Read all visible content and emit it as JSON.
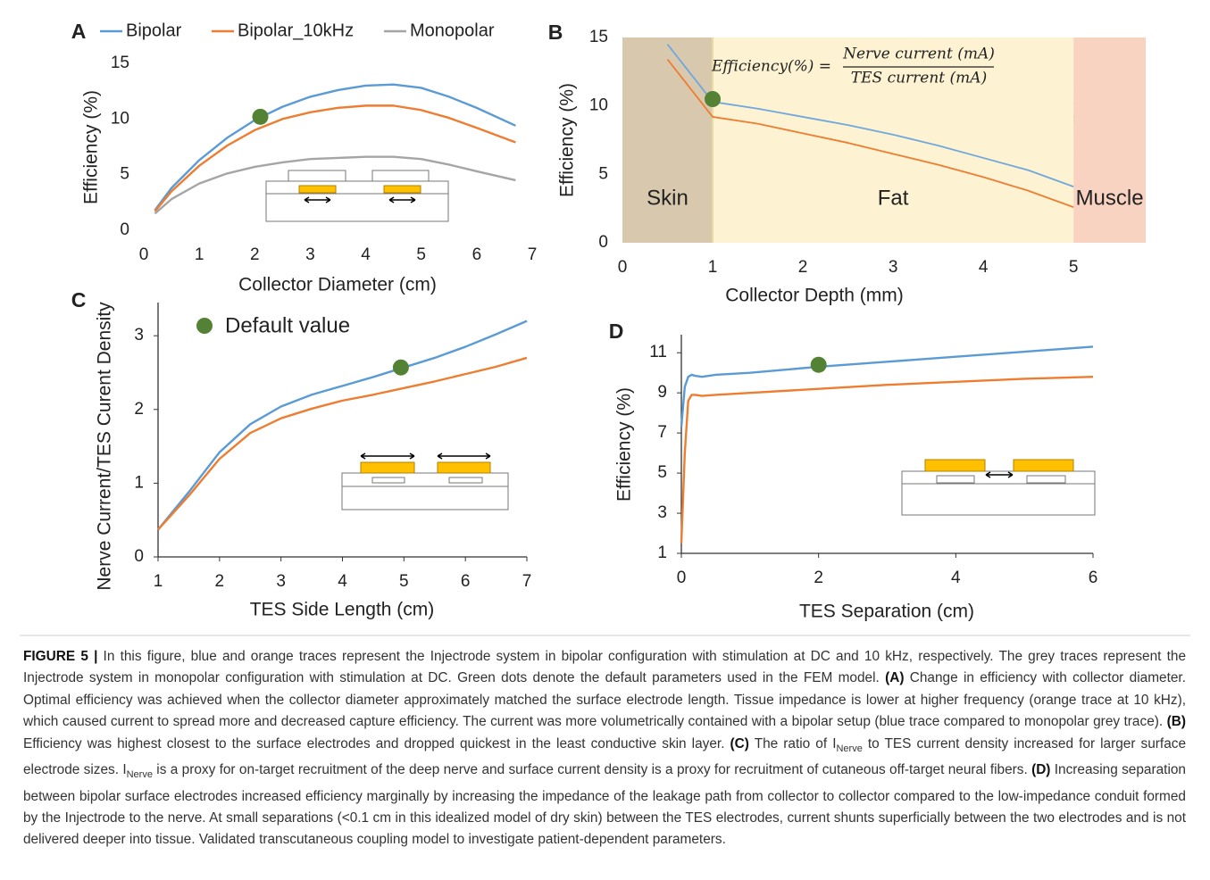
{
  "chart_data": [
    {
      "type": "line",
      "panel": "A",
      "xlabel": "Collector Diameter (cm)",
      "ylabel": "Efficiency (%)",
      "x": [
        0.2,
        0.5,
        1,
        1.5,
        2,
        2.5,
        3,
        3.5,
        4,
        4.5,
        5,
        5.5,
        6,
        6.7
      ],
      "series": [
        {
          "name": "Bipolar",
          "color": "#5b9bd5",
          "values": [
            1.8,
            3.8,
            6.3,
            8.3,
            9.9,
            11.1,
            12.0,
            12.6,
            13.0,
            13.1,
            12.8,
            12.0,
            11.0,
            9.4
          ]
        },
        {
          "name": "Bipolar_10kHz",
          "color": "#ed7d31",
          "values": [
            1.7,
            3.5,
            5.8,
            7.6,
            9.0,
            10.0,
            10.6,
            11.0,
            11.2,
            11.2,
            10.8,
            10.1,
            9.2,
            7.9
          ]
        },
        {
          "name": "Monopolar",
          "color": "#a5a5a5",
          "values": [
            1.5,
            2.8,
            4.2,
            5.1,
            5.7,
            6.1,
            6.4,
            6.5,
            6.6,
            6.6,
            6.4,
            5.9,
            5.3,
            4.5
          ]
        }
      ],
      "default_point": {
        "x": 2.1,
        "y": 10.2,
        "color": "#548235"
      },
      "xlim": [
        0,
        7
      ],
      "xticks": [
        0,
        1,
        2,
        3,
        4,
        5,
        6,
        7
      ],
      "ylim": [
        0,
        15
      ],
      "yticks": [
        0,
        5,
        10,
        15
      ]
    },
    {
      "type": "line",
      "panel": "B",
      "xlabel": "Collector Depth (mm)",
      "ylabel": "Efficiency (%)",
      "equation": {
        "lhs": "Efficiency(%) =",
        "numerator": "Nerve current (mA)",
        "denominator": "TES current (mA)"
      },
      "regions": [
        {
          "label": "Skin",
          "x0": 0,
          "x1": 1,
          "color": "#d8c8ae"
        },
        {
          "label": "Fat",
          "x0": 1,
          "x1": 5,
          "color": "#fdf2d2"
        },
        {
          "label": "Muscle",
          "x0": 5,
          "x1": 5.8,
          "color": "#f8d3c2"
        }
      ],
      "x": [
        0.5,
        1,
        1.5,
        2,
        2.5,
        3,
        3.5,
        4,
        4.5,
        5
      ],
      "series": [
        {
          "name": "Bipolar",
          "color": "#6fa8dc",
          "values": [
            14.5,
            10.3,
            9.8,
            9.2,
            8.6,
            7.9,
            7.1,
            6.2,
            5.3,
            4.1
          ]
        },
        {
          "name": "Bipolar_10kHz",
          "color": "#ed7d31",
          "values": [
            13.4,
            9.2,
            8.7,
            8.0,
            7.3,
            6.5,
            5.7,
            4.8,
            3.8,
            2.6
          ]
        }
      ],
      "default_point": {
        "x": 1,
        "y": 10.5,
        "color": "#548235"
      },
      "xlim": [
        0,
        5.8
      ],
      "xticks": [
        0,
        1,
        2,
        3,
        4,
        5
      ],
      "ylim": [
        0,
        15
      ],
      "yticks": [
        0,
        5,
        10,
        15
      ]
    },
    {
      "type": "line",
      "panel": "C",
      "xlabel": "TES Side Length (cm)",
      "ylabel": "Nerve Current/TES Curent Density",
      "default_label": "Default value",
      "x": [
        1,
        1.5,
        2,
        2.5,
        3,
        3.5,
        4,
        4.5,
        5,
        5.5,
        6,
        6.5,
        7
      ],
      "series": [
        {
          "name": "Bipolar",
          "color": "#5b9bd5",
          "values": [
            0.37,
            0.88,
            1.42,
            1.8,
            2.04,
            2.2,
            2.32,
            2.44,
            2.57,
            2.7,
            2.85,
            3.02,
            3.2
          ]
        },
        {
          "name": "Bipolar_10kHz",
          "color": "#ed7d31",
          "values": [
            0.37,
            0.83,
            1.33,
            1.68,
            1.88,
            2.01,
            2.12,
            2.2,
            2.29,
            2.38,
            2.48,
            2.58,
            2.7
          ]
        }
      ],
      "default_point": {
        "x": 4.95,
        "y": 2.57,
        "color": "#548235"
      },
      "xlim": [
        1,
        7
      ],
      "xticks": [
        1,
        2,
        3,
        4,
        5,
        6,
        7
      ],
      "ylim": [
        0,
        3.45
      ],
      "yticks": [
        0,
        1,
        2,
        3
      ]
    },
    {
      "type": "line",
      "panel": "D",
      "xlabel": "TES Separation (cm)",
      "ylabel": "Efficiency (%)",
      "x": [
        0,
        0.05,
        0.1,
        0.15,
        0.2,
        0.3,
        0.5,
        1,
        2,
        3,
        4,
        5,
        6
      ],
      "series": [
        {
          "name": "Bipolar",
          "color": "#5b9bd5",
          "values": [
            7.3,
            9.3,
            9.8,
            9.9,
            9.85,
            9.8,
            9.9,
            10.0,
            10.3,
            10.55,
            10.8,
            11.05,
            11.3
          ]
        },
        {
          "name": "Bipolar_10kHz",
          "color": "#ed7d31",
          "values": [
            1.5,
            6,
            8.6,
            8.9,
            8.9,
            8.85,
            8.9,
            9.0,
            9.2,
            9.4,
            9.55,
            9.7,
            9.8
          ]
        }
      ],
      "default_point": {
        "x": 2,
        "y": 10.4,
        "color": "#548235"
      },
      "xlim": [
        0,
        6
      ],
      "xticks": [
        0,
        2,
        4,
        6
      ],
      "ylim": [
        1,
        11.9
      ],
      "yticks": [
        1,
        3,
        5,
        7,
        9,
        11
      ]
    }
  ],
  "caption": [
    {
      "text": "FIGURE 5 |",
      "bold": true
    },
    {
      "text": " In this figure, blue and orange traces represent the Injectrode system in bipolar configuration with stimulation at DC and 10 kHz, respectively. The grey traces represent the Injectrode system in monopolar configuration with stimulation at DC. Green dots denote the default parameters used in the FEM model. "
    },
    {
      "text": "(A)",
      "bold": true
    },
    {
      "text": " Change in efficiency with collector diameter. Optimal efficiency was achieved when the collector diameter approximately matched the surface electrode length. Tissue impedance is lower at higher frequency (orange trace at 10 kHz), which caused current to spread more and decreased capture efficiency. The current was more volumetrically contained with a bipolar setup (blue trace compared to monopolar grey trace). "
    },
    {
      "text": "(B)",
      "bold": true
    },
    {
      "text": " Efficiency was highest closest to the surface electrodes and dropped quickest in the least conductive skin layer. "
    },
    {
      "text": "(C)",
      "bold": true
    },
    {
      "text": " The ratio of I"
    },
    {
      "text": "Nerve",
      "sub": true
    },
    {
      "text": " to TES current density increased for larger surface electrode sizes. I"
    },
    {
      "text": "Nerve",
      "sub": true
    },
    {
      "text": " is a proxy for on-target recruitment of the deep nerve and surface current density is a proxy for recruitment of cutaneous off-target neural fibers. "
    },
    {
      "text": "(D)",
      "bold": true
    },
    {
      "text": " Increasing separation between bipolar surface electrodes increased efficiency marginally by increasing the impedance of the leakage path from collector to collector compared to the low-impedance conduit formed by the Injectrode to the nerve. At small separations (<0.1 cm in this idealized model of dry skin) between the TES electrodes, current shunts superficially between the two electrodes and is not delivered deeper into tissue. Validated transcutaneous coupling model to investigate patient-dependent parameters."
    }
  ]
}
